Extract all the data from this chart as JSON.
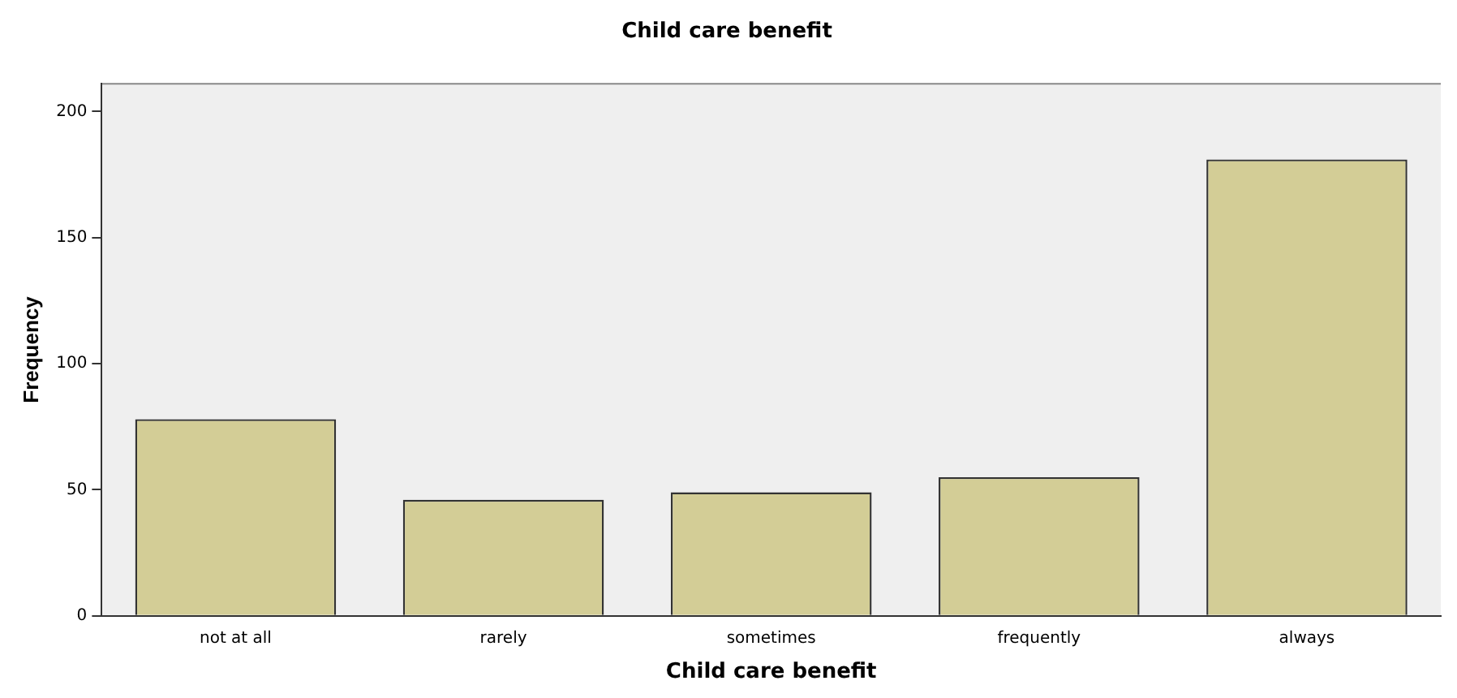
{
  "chart_data": {
    "type": "bar",
    "title": "Child care benefit",
    "xlabel": "Child care benefit",
    "ylabel": "Frequency",
    "categories": [
      "not at all",
      "rarely",
      "sometimes",
      "frequently",
      "always"
    ],
    "values": [
      78,
      46,
      49,
      55,
      181
    ],
    "color": "#d3cd96",
    "ylim": [
      0,
      211
    ],
    "yticks": [
      0,
      50,
      100,
      150,
      200
    ],
    "grid": false,
    "legend": false
  }
}
